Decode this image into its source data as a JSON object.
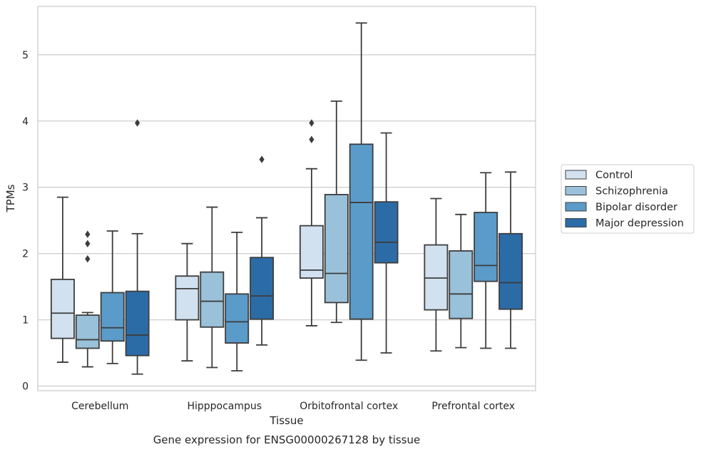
{
  "chart_data": {
    "type": "boxplot",
    "categories": [
      "Cerebellum",
      "Hipppocampus",
      "Orbitofrontal cortex",
      "Prefrontal cortex"
    ],
    "xlabel": "Tissue",
    "ylabel": "TPMs",
    "caption": "Gene expression for ENSG00000267128 by tissue",
    "ylim": [
      -0.07,
      5.73
    ],
    "yticks": [
      "0",
      "1",
      "2",
      "3",
      "4",
      "5"
    ],
    "grid": "horizontal",
    "legend_position": "right",
    "series": [
      {
        "name": "Control",
        "color": "#d1e1f0",
        "boxes": [
          {
            "whislo": 0.36,
            "q1": 0.72,
            "med": 1.1,
            "q3": 1.61,
            "whishi": 2.85,
            "fliers": []
          },
          {
            "whislo": 0.38,
            "q1": 1.0,
            "med": 1.47,
            "q3": 1.66,
            "whishi": 2.15,
            "fliers": []
          },
          {
            "whislo": 0.91,
            "q1": 1.63,
            "med": 1.75,
            "q3": 2.42,
            "whishi": 3.28,
            "fliers": [
              3.72,
              3.97
            ]
          },
          {
            "whislo": 0.53,
            "q1": 1.15,
            "med": 1.63,
            "q3": 2.13,
            "whishi": 2.83,
            "fliers": []
          }
        ]
      },
      {
        "name": "Schizophrenia",
        "color": "#9ac1da",
        "boxes": [
          {
            "whislo": 0.29,
            "q1": 0.57,
            "med": 0.7,
            "q3": 1.07,
            "whishi": 1.11,
            "fliers": [
              1.92,
              2.15,
              2.29
            ]
          },
          {
            "whislo": 0.28,
            "q1": 0.89,
            "med": 1.28,
            "q3": 1.72,
            "whishi": 2.7,
            "fliers": []
          },
          {
            "whislo": 0.96,
            "q1": 1.26,
            "med": 1.7,
            "q3": 2.89,
            "whishi": 4.3,
            "fliers": []
          },
          {
            "whislo": 0.58,
            "q1": 1.02,
            "med": 1.39,
            "q3": 2.04,
            "whishi": 2.59,
            "fliers": []
          }
        ]
      },
      {
        "name": "Bipolar disorder",
        "color": "#5b9bc9",
        "boxes": [
          {
            "whislo": 0.34,
            "q1": 0.68,
            "med": 0.88,
            "q3": 1.41,
            "whishi": 2.34,
            "fliers": []
          },
          {
            "whislo": 0.23,
            "q1": 0.65,
            "med": 0.97,
            "q3": 1.39,
            "whishi": 2.32,
            "fliers": []
          },
          {
            "whislo": 0.39,
            "q1": 1.01,
            "med": 2.77,
            "q3": 3.65,
            "whishi": 5.48,
            "fliers": []
          },
          {
            "whislo": 0.57,
            "q1": 1.58,
            "med": 1.82,
            "q3": 2.62,
            "whishi": 3.22,
            "fliers": []
          }
        ]
      },
      {
        "name": "Major depression",
        "color": "#2b6ca7",
        "boxes": [
          {
            "whislo": 0.18,
            "q1": 0.46,
            "med": 0.77,
            "q3": 1.43,
            "whishi": 2.3,
            "fliers": [
              3.97
            ]
          },
          {
            "whislo": 0.62,
            "q1": 1.01,
            "med": 1.36,
            "q3": 1.94,
            "whishi": 2.54,
            "fliers": [
              3.42
            ]
          },
          {
            "whislo": 0.5,
            "q1": 1.86,
            "med": 2.17,
            "q3": 2.78,
            "whishi": 3.82,
            "fliers": []
          },
          {
            "whislo": 0.57,
            "q1": 1.16,
            "med": 1.56,
            "q3": 2.3,
            "whishi": 3.23,
            "fliers": []
          }
        ]
      }
    ]
  }
}
